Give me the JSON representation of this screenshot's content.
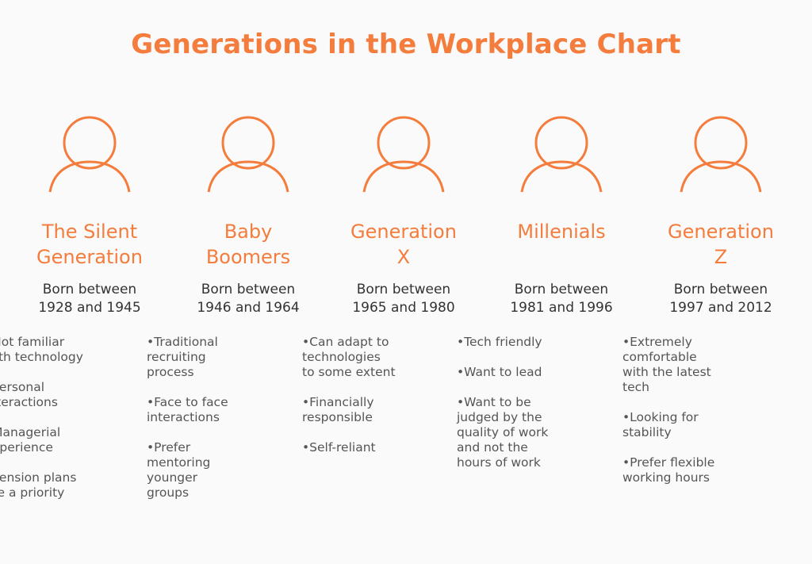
{
  "title": "Generations in the Workplace Chart",
  "colors": {
    "accent": "#f47c3c",
    "text": "#333333",
    "muted_text": "#555555",
    "background": "#fafafa"
  },
  "generations": [
    {
      "name_line1": "The Silent",
      "name_line2": "Generation",
      "born_line1": "Born between",
      "born_line2": "1928 and 1945",
      "traits": [
        [
          "•Not familiar",
          "with technology"
        ],
        [
          "•Personal",
          "interactions"
        ],
        [
          "•Managerial",
          "experience"
        ],
        [
          "•Pension plans",
          "are a priority"
        ]
      ]
    },
    {
      "name_line1": "Baby",
      "name_line2": "Boomers",
      "born_line1": "Born between",
      "born_line2": "1946 and 1964",
      "traits": [
        [
          "•Traditional",
          "recruiting",
          "process"
        ],
        [
          "•Face to face",
          "interactions"
        ],
        [
          "•Prefer",
          "mentoring",
          "younger",
          "groups"
        ]
      ]
    },
    {
      "name_line1": "Generation",
      "name_line2": "X",
      "born_line1": "Born between",
      "born_line2": "1965 and 1980",
      "traits": [
        [
          "•Can adapt to",
          "technologies",
          "to some extent"
        ],
        [
          "•Financially",
          "responsible"
        ],
        [
          "•Self-reliant"
        ]
      ]
    },
    {
      "name_line1": "Millenials",
      "name_line2": "",
      "born_line1": "Born between",
      "born_line2": "1981 and 1996",
      "traits": [
        [
          "•Tech friendly"
        ],
        [
          "•Want to lead"
        ],
        [
          "•Want to be",
          "judged by the",
          "quality of work",
          "and not the",
          "hours of work"
        ]
      ]
    },
    {
      "name_line1": "Generation",
      "name_line2": "Z",
      "born_line1": "Born between",
      "born_line2": "1997 and 2012",
      "traits": [
        [
          "•Extremely",
          "comfortable",
          "with the latest",
          "tech"
        ],
        [
          "•Looking for",
          "stability"
        ],
        [
          "•Prefer flexible",
          "working hours"
        ]
      ]
    }
  ]
}
